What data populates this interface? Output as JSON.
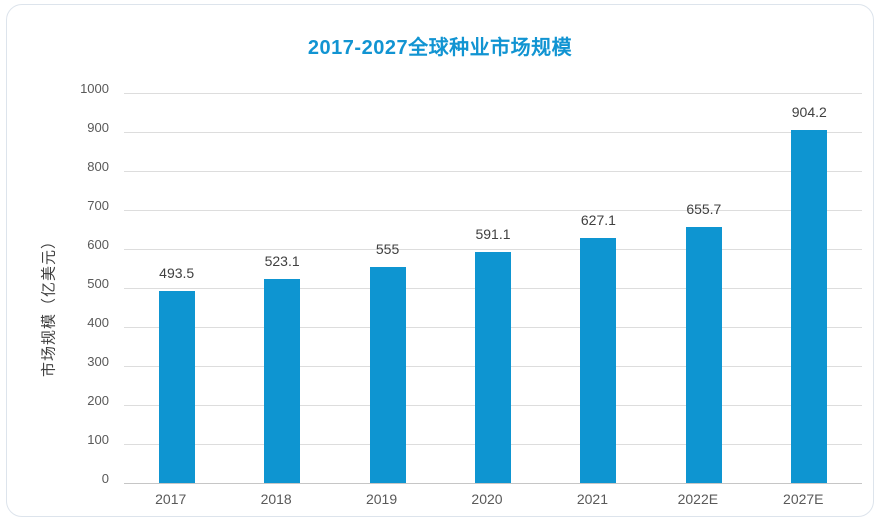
{
  "card": {
    "border_color": "#dde4ec",
    "background": "#ffffff"
  },
  "chart_data": {
    "type": "bar",
    "title": "2017-2027全球种业市场规模",
    "xlabel": "",
    "ylabel": "市场规模（亿美元）",
    "categories": [
      "2017",
      "2018",
      "2019",
      "2020",
      "2021",
      "2022E",
      "2027E"
    ],
    "values": [
      493.5,
      523.1,
      555,
      591.1,
      627.1,
      655.7,
      904.2
    ],
    "value_labels": [
      "493.5",
      "523.1",
      "555",
      "591.1",
      "627.1",
      "655.7",
      "904.2"
    ],
    "ylim": [
      0,
      1000
    ],
    "ytick_step": 100,
    "ytick_labels": [
      "0",
      "100",
      "200",
      "300",
      "400",
      "500",
      "600",
      "700",
      "800",
      "900",
      "1000"
    ],
    "grid": true,
    "legend_position": "none",
    "colors": {
      "bar": "#0e95d1",
      "title": "#1194d2",
      "value_label": "#404040",
      "axis_title": "#404040",
      "tick_label": "#595959",
      "gridline": "#dddddd",
      "axis_line": "#c6c6c6"
    }
  }
}
